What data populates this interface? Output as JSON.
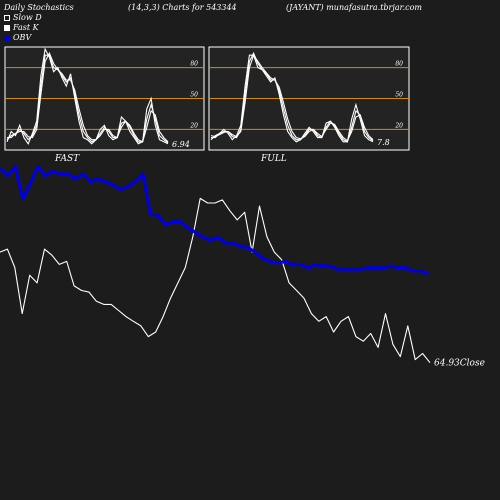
{
  "header": {
    "left": "Daily Stochastics",
    "params": "(14,3,3) Charts for 543344",
    "symbol": "(JAYANT) munafasutra.tbrjar.com"
  },
  "legend": [
    {
      "label": "Slow  D",
      "color": "#ffffff"
    },
    {
      "label": "Fast K",
      "color": "#ffffff"
    },
    {
      "label": "OBV",
      "color": "#0000dd"
    }
  ],
  "colors": {
    "background": "#1c1c1c",
    "panel": "#232323",
    "level": "#d08a1c",
    "price": "#ffffff",
    "obv": "#0000dd"
  },
  "chart_data": [
    {
      "type": "line",
      "title": "FAST",
      "ylim": [
        0,
        100
      ],
      "levels": [
        20,
        50,
        80
      ],
      "tick_labels": [
        "80",
        "50",
        "20"
      ],
      "last_value_label": "6.94",
      "series": [
        {
          "values": [
            8,
            18,
            14,
            24,
            12,
            6,
            16,
            28,
            72,
            98,
            90,
            76,
            80,
            70,
            62,
            74,
            50,
            28,
            12,
            10,
            6,
            10,
            20,
            24,
            14,
            10,
            12,
            32,
            28,
            18,
            12,
            6,
            8,
            40,
            50,
            24,
            10,
            8,
            6
          ]
        },
        {
          "values": [
            10,
            14,
            16,
            20,
            16,
            10,
            14,
            24,
            62,
            92,
            92,
            80,
            78,
            72,
            66,
            70,
            54,
            34,
            18,
            12,
            8,
            10,
            16,
            22,
            18,
            12,
            12,
            26,
            28,
            22,
            14,
            8,
            8,
            30,
            44,
            30,
            14,
            10,
            7
          ]
        },
        {
          "values": [
            12,
            12,
            16,
            18,
            18,
            13,
            12,
            20,
            54,
            86,
            94,
            84,
            78,
            74,
            68,
            68,
            58,
            40,
            24,
            14,
            10,
            10,
            14,
            20,
            20,
            14,
            12,
            22,
            28,
            24,
            16,
            10,
            8,
            22,
            38,
            34,
            18,
            12,
            8
          ]
        }
      ]
    },
    {
      "type": "line",
      "title": "FULL",
      "ylim": [
        0,
        100
      ],
      "levels": [
        20,
        50,
        80
      ],
      "tick_labels": [
        "80",
        "50",
        "20"
      ],
      "last_value_label": "7.8",
      "series": [
        {
          "values": [
            10,
            14,
            16,
            20,
            16,
            10,
            14,
            24,
            62,
            92,
            92,
            80,
            78,
            72,
            66,
            70,
            54,
            34,
            18,
            12,
            8,
            10,
            16,
            22,
            18,
            12,
            12,
            26,
            28,
            22,
            14,
            8,
            8,
            30,
            44,
            30,
            14,
            10,
            8
          ]
        },
        {
          "values": [
            12,
            12,
            16,
            18,
            18,
            13,
            12,
            20,
            54,
            86,
            94,
            84,
            78,
            74,
            68,
            68,
            58,
            40,
            24,
            14,
            10,
            10,
            14,
            20,
            20,
            14,
            12,
            22,
            28,
            24,
            16,
            10,
            8,
            22,
            38,
            34,
            18,
            12,
            9
          ]
        },
        {
          "values": [
            14,
            13,
            15,
            17,
            18,
            15,
            13,
            18,
            46,
            80,
            92,
            86,
            80,
            75,
            70,
            68,
            61,
            46,
            30,
            18,
            12,
            11,
            13,
            18,
            20,
            16,
            13,
            20,
            26,
            25,
            18,
            12,
            9,
            18,
            32,
            34,
            22,
            14,
            10
          ]
        }
      ]
    },
    {
      "type": "line",
      "close_label": "64.93Close",
      "series": [
        {
          "name": "Close",
          "values": [
            50,
            52,
            40,
            10,
            35,
            30,
            52,
            48,
            42,
            44,
            28,
            25,
            24,
            18,
            16,
            16,
            12,
            8,
            5,
            2,
            -5,
            -2,
            8,
            20,
            30,
            40,
            60,
            85,
            82,
            82,
            84,
            77,
            71,
            76,
            50,
            80,
            60,
            50,
            45,
            30,
            25,
            20,
            10,
            5,
            8,
            -2,
            5,
            8,
            -5,
            -8,
            -3,
            -12,
            10,
            -10,
            -18,
            2,
            -20,
            -16,
            -22
          ]
        },
        {
          "name": "OBV",
          "values": [
            105,
            100,
            106,
            85,
            95,
            106,
            100,
            103,
            101,
            101,
            98,
            101,
            96,
            98,
            96,
            94,
            91,
            93,
            96,
            101,
            75,
            74,
            68,
            70,
            70,
            66,
            63,
            60,
            58,
            60,
            56,
            56,
            54,
            53,
            50,
            46,
            44,
            43,
            44,
            42,
            42,
            40,
            42,
            41,
            41,
            39,
            39,
            39,
            39,
            40,
            40,
            40,
            41,
            40,
            40,
            38,
            38,
            36
          ]
        }
      ]
    }
  ]
}
